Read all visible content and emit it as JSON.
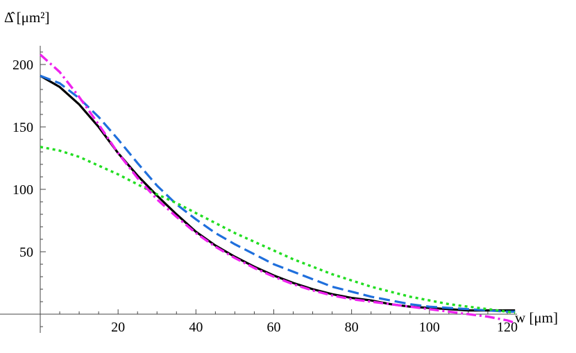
{
  "chart_data": {
    "type": "line",
    "ylabel": "Δ̂ [μm²]",
    "xlabel": "w [μm]",
    "xlim": [
      0,
      122
    ],
    "ylim": [
      -15,
      215
    ],
    "x_ticks": [
      20,
      40,
      60,
      80,
      100,
      120
    ],
    "y_ticks": [
      50,
      100,
      150,
      200
    ],
    "grid": false,
    "legend": "none",
    "series": [
      {
        "style": "solid",
        "color": "#000000",
        "x": [
          0,
          5,
          10,
          15,
          20,
          25,
          30,
          35,
          40,
          45,
          50,
          55,
          60,
          65,
          70,
          75,
          80,
          85,
          90,
          95,
          100,
          105,
          110,
          115,
          120,
          122
        ],
        "values": [
          191,
          182,
          168,
          150,
          129,
          111,
          95,
          80,
          66,
          55,
          46,
          38,
          31,
          25,
          20,
          16,
          13,
          11,
          8,
          6,
          5,
          4,
          3,
          3,
          3,
          3
        ]
      },
      {
        "style": "dashed",
        "color": "#1f6fdc",
        "x": [
          0,
          5,
          10,
          15,
          20,
          25,
          30,
          35,
          40,
          45,
          50,
          55,
          60,
          65,
          70,
          75,
          80,
          85,
          90,
          95,
          100,
          105,
          110,
          115,
          120,
          122
        ],
        "values": [
          191,
          185,
          173,
          158,
          140,
          121,
          103,
          88,
          76,
          65,
          56,
          48,
          40,
          34,
          28,
          22,
          18,
          14,
          11,
          8,
          6,
          5,
          4,
          3,
          2,
          2
        ]
      },
      {
        "style": "dotted",
        "color": "#22dd22",
        "x": [
          0,
          5,
          10,
          15,
          20,
          25,
          30,
          35,
          40,
          45,
          50,
          55,
          60,
          65,
          70,
          75,
          80,
          85,
          90,
          95,
          100,
          105,
          110,
          115,
          120,
          122
        ],
        "values": [
          134,
          131,
          126,
          119,
          112,
          104,
          96,
          89,
          81,
          73,
          65,
          58,
          51,
          44,
          38,
          32,
          27,
          22,
          18,
          14,
          11,
          8,
          6,
          4,
          2,
          1
        ]
      },
      {
        "style": "dash-dot",
        "color": "#ee22ee",
        "x": [
          0,
          5,
          10,
          15,
          20,
          25,
          30,
          35,
          40,
          45,
          50,
          55,
          60,
          65,
          70,
          75,
          80,
          85,
          90,
          95,
          100,
          105,
          110,
          115,
          120,
          122
        ],
        "values": [
          208,
          194,
          174,
          152,
          129,
          109,
          92,
          78,
          65,
          54,
          45,
          37,
          30,
          24,
          19,
          15,
          12,
          10,
          8,
          6,
          4,
          2,
          0,
          -2,
          -5,
          -7
        ]
      }
    ]
  }
}
